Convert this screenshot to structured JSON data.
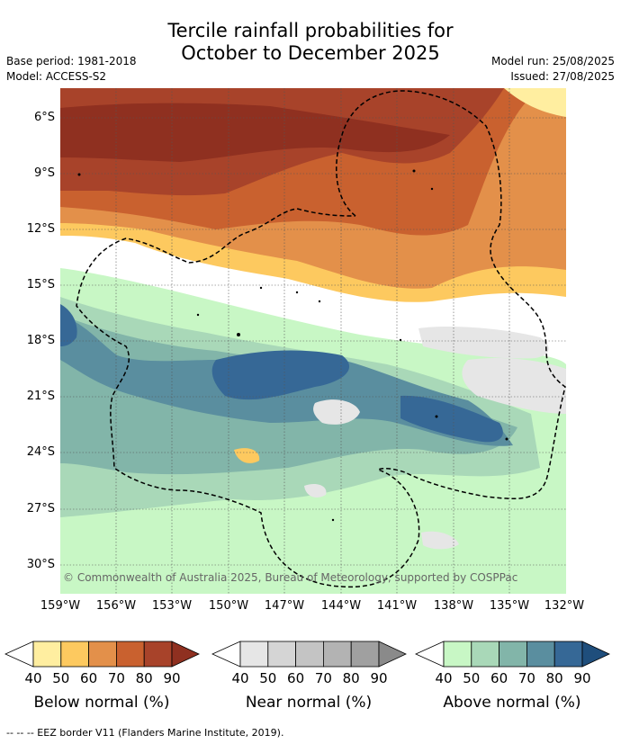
{
  "title_line1": "Tercile rainfall probabilities for",
  "title_line2": "October to December 2025",
  "meta_left": [
    "Base period: 1981-2018",
    "Model: ACCESS-S2"
  ],
  "meta_right": [
    "Model run: 25/08/2025",
    "Issued: 27/08/2025"
  ],
  "copyright": "© Commonwealth of Australia 2025, Bureau of Meteorology, supported by COSPPac",
  "lat_labels": [
    "6°S",
    "9°S",
    "12°S",
    "15°S",
    "18°S",
    "21°S",
    "24°S",
    "27°S",
    "30°S"
  ],
  "lon_labels": [
    "159°W",
    "156°W",
    "153°W",
    "150°W",
    "147°W",
    "144°W",
    "141°W",
    "138°W",
    "135°W",
    "132°W"
  ],
  "colorbars": [
    {
      "name": "below",
      "label": "Below normal (%)",
      "ticks": [
        "40",
        "50",
        "60",
        "70",
        "80",
        "90"
      ],
      "colors": [
        "#ffeea0",
        "#fdc95f",
        "#e3904a",
        "#c9612f",
        "#a8432a",
        "#8f3020"
      ]
    },
    {
      "name": "near",
      "label": "Near normal (%)",
      "ticks": [
        "40",
        "50",
        "60",
        "70",
        "80",
        "90"
      ],
      "colors": [
        "#e6e6e6",
        "#d5d5d5",
        "#c4c4c4",
        "#b3b3b3",
        "#a0a0a0",
        "#8a8a8a"
      ]
    },
    {
      "name": "above",
      "label": "Above normal (%)",
      "ticks": [
        "40",
        "50",
        "60",
        "70",
        "80",
        "90"
      ],
      "colors": [
        "#c8f7c5",
        "#a9d8b8",
        "#82b5a9",
        "#5a8e9f",
        "#366896",
        "#1f4e7c"
      ]
    }
  ],
  "footer": "-- -- -- EEZ border V11 (Flanders Marine Institute, 2019)."
}
